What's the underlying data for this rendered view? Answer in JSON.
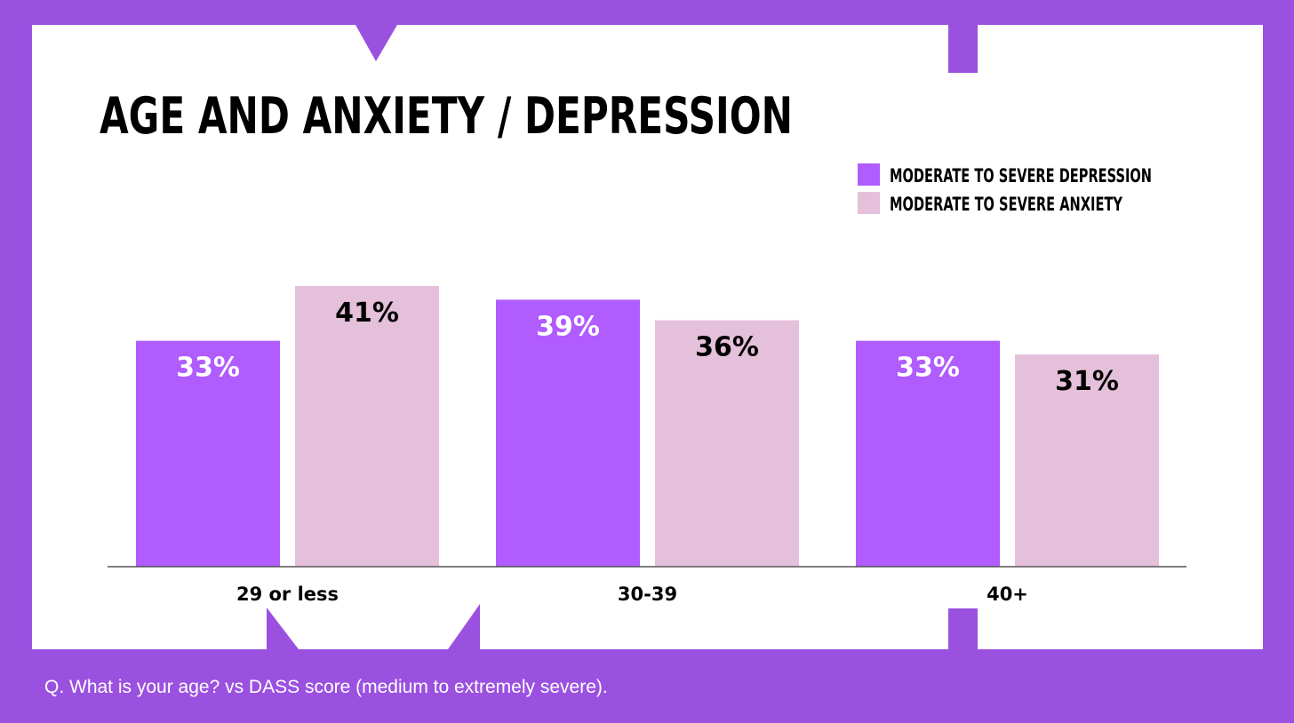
{
  "colors": {
    "background": "#9b51e0",
    "panel": "#ffffff",
    "depression": "#b05cff",
    "anxiety": "#e5c0da",
    "axis": "#555555",
    "text_dark": "#000000",
    "text_light": "#ffffff"
  },
  "footnote": "Q. What is your age? vs DASS score (medium to extremely severe).",
  "chart_data": {
    "type": "bar",
    "title": "AGE AND ANXIETY / DEPRESSION",
    "categories": [
      "29 or less",
      "30-39",
      "40+"
    ],
    "series": [
      {
        "name": "MODERATE TO SEVERE DEPRESSION",
        "values": [
          33,
          39,
          33
        ],
        "labels": [
          "33%",
          "39%",
          "33%"
        ]
      },
      {
        "name": "MODERATE TO SEVERE ANXIETY",
        "values": [
          41,
          36,
          31
        ],
        "labels": [
          "41%",
          "36%",
          "31%"
        ]
      }
    ],
    "xlabel": "",
    "ylabel": "",
    "ylim": [
      0,
      41
    ],
    "legend": "top-right",
    "grid": false
  }
}
